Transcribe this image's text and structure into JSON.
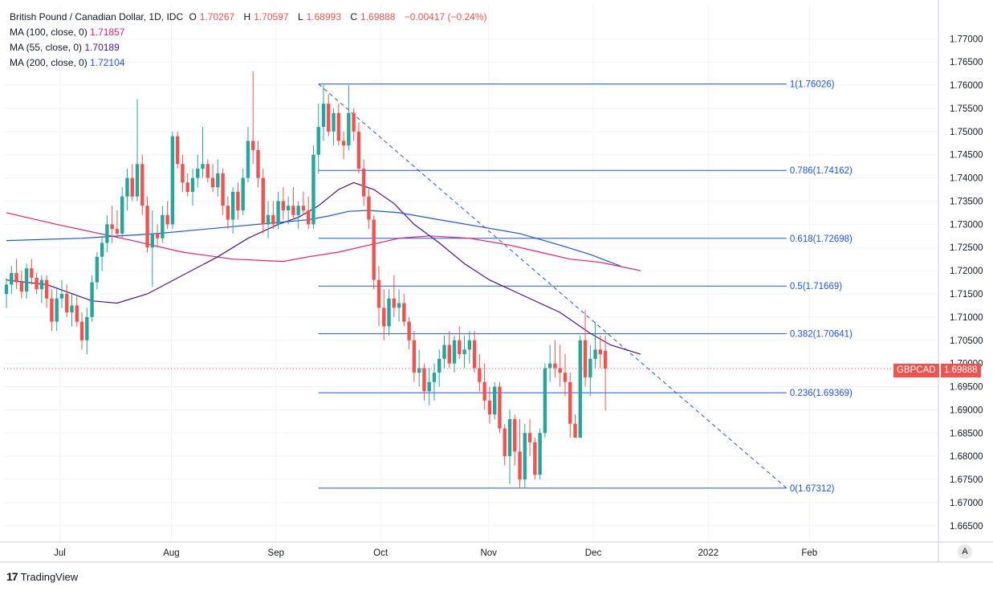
{
  "header": {
    "symbol_title": "British Pound / Canadian Dollar, 1D, IDC",
    "ohlc": {
      "open_label": "O",
      "open": "1.70267",
      "high_label": "H",
      "high": "1.70597",
      "low_label": "L",
      "low": "1.68993",
      "close_label": "C",
      "close": "1.69888",
      "change": "−0.00417 (−0.24%)"
    },
    "indicators": [
      {
        "label": "MA (100, close, 0)",
        "value": "1.71857",
        "color": "#e91e63"
      },
      {
        "label": "MA (55, close, 0)",
        "value": "1.70189",
        "color": "#4a148c"
      },
      {
        "label": "MA (200, close, 0)",
        "value": "1.72104",
        "color": "#1e53e5"
      }
    ]
  },
  "price_tag": {
    "symbol": "GBPCAD",
    "value": "1.69888",
    "color": "#ef5350"
  },
  "branding": {
    "logo": "TradingView"
  },
  "axis_corner": "A",
  "chart_data": {
    "type": "candlestick",
    "y_axis": {
      "ylim": [
        1.6615,
        1.7775
      ],
      "ticks": [
        "1.77000",
        "1.76500",
        "1.76000",
        "1.75500",
        "1.75000",
        "1.74500",
        "1.74000",
        "1.73500",
        "1.73000",
        "1.72500",
        "1.72000",
        "1.71500",
        "1.71000",
        "1.70500",
        "1.70000",
        "1.69500",
        "1.69000",
        "1.68500",
        "1.68000",
        "1.67500",
        "1.67000",
        "1.66500"
      ]
    },
    "x_axis": {
      "xlim": [
        "2021-06-15",
        "2022-03-10"
      ],
      "ticks": [
        {
          "label": "Jul",
          "date": "2021-07-01"
        },
        {
          "label": "Aug",
          "date": "2021-08-02"
        },
        {
          "label": "Sep",
          "date": "2021-09-01"
        },
        {
          "label": "Oct",
          "date": "2021-10-01"
        },
        {
          "label": "Nov",
          "date": "2021-11-01"
        },
        {
          "label": "Dec",
          "date": "2021-12-01"
        },
        {
          "label": "2022",
          "date": "2022-01-03"
        },
        {
          "label": "Feb",
          "date": "2022-02-01"
        }
      ]
    },
    "colors": {
      "up": "#26a69a",
      "down": "#ef5350",
      "fib": "#1e53e5",
      "grid": "#f0f3fa"
    },
    "candles_ohlc": [
      [
        1.715,
        1.7185,
        1.712,
        1.717
      ],
      [
        1.717,
        1.721,
        1.715,
        1.7195
      ],
      [
        1.7195,
        1.7225,
        1.716,
        1.7175
      ],
      [
        1.7175,
        1.72,
        1.714,
        1.7155
      ],
      [
        1.7155,
        1.7215,
        1.714,
        1.7205
      ],
      [
        1.7205,
        1.7225,
        1.717,
        1.7185
      ],
      [
        1.7185,
        1.7195,
        1.715,
        1.716
      ],
      [
        1.716,
        1.719,
        1.713,
        1.718
      ],
      [
        1.718,
        1.719,
        1.712,
        1.714
      ],
      [
        1.714,
        1.716,
        1.707,
        1.709
      ],
      [
        1.709,
        1.716,
        1.707,
        1.714
      ],
      [
        1.714,
        1.718,
        1.712,
        1.715
      ],
      [
        1.715,
        1.717,
        1.71,
        1.711
      ],
      [
        1.711,
        1.715,
        1.708,
        1.7125
      ],
      [
        1.7125,
        1.7145,
        1.708,
        1.709
      ],
      [
        1.709,
        1.711,
        1.703,
        1.705
      ],
      [
        1.705,
        1.712,
        1.702,
        1.71
      ],
      [
        1.71,
        1.719,
        1.709,
        1.7175
      ],
      [
        1.7175,
        1.724,
        1.716,
        1.723
      ],
      [
        1.723,
        1.7275,
        1.72,
        1.726
      ],
      [
        1.726,
        1.732,
        1.724,
        1.73
      ],
      [
        1.73,
        1.734,
        1.726,
        1.729
      ],
      [
        1.729,
        1.733,
        1.727,
        1.728
      ],
      [
        1.728,
        1.738,
        1.727,
        1.736
      ],
      [
        1.736,
        1.742,
        1.733,
        1.74
      ],
      [
        1.74,
        1.743,
        1.735,
        1.736
      ],
      [
        1.736,
        1.757,
        1.735,
        1.743
      ],
      [
        1.743,
        1.745,
        1.732,
        1.734
      ],
      [
        1.734,
        1.736,
        1.724,
        1.725
      ],
      [
        1.725,
        1.733,
        1.7165,
        1.728
      ],
      [
        1.728,
        1.73,
        1.725,
        1.727
      ],
      [
        1.727,
        1.734,
        1.726,
        1.732
      ],
      [
        1.732,
        1.735,
        1.729,
        1.73
      ],
      [
        1.73,
        1.75,
        1.729,
        1.749
      ],
      [
        1.749,
        1.75,
        1.742,
        1.743
      ],
      [
        1.743,
        1.745,
        1.737,
        1.739
      ],
      [
        1.739,
        1.741,
        1.736,
        1.737
      ],
      [
        1.737,
        1.742,
        1.734,
        1.74
      ],
      [
        1.74,
        1.745,
        1.738,
        1.742
      ],
      [
        1.742,
        1.751,
        1.74,
        1.743
      ],
      [
        1.743,
        1.744,
        1.739,
        1.74
      ],
      [
        1.74,
        1.743,
        1.737,
        1.738
      ],
      [
        1.738,
        1.744,
        1.736,
        1.741
      ],
      [
        1.741,
        1.742,
        1.732,
        1.734
      ],
      [
        1.734,
        1.736,
        1.729,
        1.731
      ],
      [
        1.731,
        1.738,
        1.728,
        1.737
      ],
      [
        1.737,
        1.739,
        1.731,
        1.733
      ],
      [
        1.733,
        1.742,
        1.732,
        1.74
      ],
      [
        1.74,
        1.751,
        1.739,
        1.748
      ],
      [
        1.748,
        1.763,
        1.743,
        1.746
      ],
      [
        1.746,
        1.748,
        1.738,
        1.74
      ],
      [
        1.74,
        1.742,
        1.728,
        1.73
      ],
      [
        1.73,
        1.735,
        1.727,
        1.732
      ],
      [
        1.732,
        1.735,
        1.729,
        1.73
      ],
      [
        1.73,
        1.737,
        1.729,
        1.735
      ],
      [
        1.735,
        1.738,
        1.731,
        1.733
      ],
      [
        1.733,
        1.736,
        1.73,
        1.734
      ],
      [
        1.734,
        1.738,
        1.731,
        1.732
      ],
      [
        1.732,
        1.735,
        1.729,
        1.734
      ],
      [
        1.734,
        1.737,
        1.732,
        1.733
      ],
      [
        1.733,
        1.736,
        1.729,
        1.73
      ],
      [
        1.73,
        1.747,
        1.729,
        1.745
      ],
      [
        1.745,
        1.756,
        1.741,
        1.751
      ],
      [
        1.751,
        1.76,
        1.748,
        1.756
      ],
      [
        1.756,
        1.758,
        1.749,
        1.75
      ],
      [
        1.75,
        1.755,
        1.747,
        1.754
      ],
      [
        1.754,
        1.756,
        1.747,
        1.748
      ],
      [
        1.748,
        1.75,
        1.744,
        1.747
      ],
      [
        1.747,
        1.76,
        1.746,
        1.754
      ],
      [
        1.754,
        1.755,
        1.748,
        1.75
      ],
      [
        1.75,
        1.752,
        1.741,
        1.742
      ],
      [
        1.742,
        1.744,
        1.734,
        1.736
      ],
      [
        1.736,
        1.738,
        1.729,
        1.731
      ],
      [
        1.731,
        1.732,
        1.716,
        1.718
      ],
      [
        1.718,
        1.721,
        1.708,
        1.712
      ],
      [
        1.712,
        1.716,
        1.705,
        1.708
      ],
      [
        1.708,
        1.716,
        1.706,
        1.714
      ],
      [
        1.714,
        1.719,
        1.71,
        1.712
      ],
      [
        1.712,
        1.716,
        1.709,
        1.713
      ],
      [
        1.713,
        1.715,
        1.708,
        1.709
      ],
      [
        1.709,
        1.71,
        1.703,
        1.705
      ],
      [
        1.705,
        1.707,
        1.696,
        1.698
      ],
      [
        1.698,
        1.703,
        1.695,
        1.699
      ],
      [
        1.699,
        1.7,
        1.692,
        1.694
      ],
      [
        1.694,
        1.699,
        1.691,
        1.696
      ],
      [
        1.696,
        1.7,
        1.692,
        1.698
      ],
      [
        1.698,
        1.703,
        1.695,
        1.701
      ],
      [
        1.701,
        1.706,
        1.699,
        1.704
      ],
      [
        1.704,
        1.707,
        1.699,
        1.7
      ],
      [
        1.7,
        1.706,
        1.698,
        1.705
      ],
      [
        1.705,
        1.708,
        1.701,
        1.702
      ],
      [
        1.702,
        1.706,
        1.699,
        1.703
      ],
      [
        1.703,
        1.707,
        1.7,
        1.705
      ],
      [
        1.705,
        1.707,
        1.698,
        1.699
      ],
      [
        1.699,
        1.702,
        1.694,
        1.696
      ],
      [
        1.696,
        1.7,
        1.69,
        1.692
      ],
      [
        1.692,
        1.695,
        1.687,
        1.689
      ],
      [
        1.689,
        1.696,
        1.688,
        1.695
      ],
      [
        1.695,
        1.696,
        1.685,
        1.686
      ],
      [
        1.686,
        1.687,
        1.678,
        1.68
      ],
      [
        1.68,
        1.69,
        1.674,
        1.688
      ],
      [
        1.688,
        1.689,
        1.678,
        1.681
      ],
      [
        1.681,
        1.688,
        1.673,
        1.675
      ],
      [
        1.675,
        1.687,
        1.673,
        1.685
      ],
      [
        1.685,
        1.688,
        1.68,
        1.683
      ],
      [
        1.683,
        1.684,
        1.675,
        1.676
      ],
      [
        1.676,
        1.686,
        1.675,
        1.685
      ],
      [
        1.685,
        1.7,
        1.684,
        1.699
      ],
      [
        1.699,
        1.704,
        1.696,
        1.7
      ],
      [
        1.7,
        1.705,
        1.697,
        1.699
      ],
      [
        1.699,
        1.704,
        1.695,
        1.698
      ],
      [
        1.698,
        1.702,
        1.693,
        1.696
      ],
      [
        1.696,
        1.698,
        1.684,
        1.687
      ],
      [
        1.687,
        1.689,
        1.684,
        1.684
      ],
      [
        1.684,
        1.706,
        1.684,
        1.705
      ],
      [
        1.705,
        1.7115,
        1.695,
        1.697
      ],
      [
        1.697,
        1.704,
        1.693,
        1.701
      ],
      [
        1.701,
        1.709,
        1.699,
        1.703
      ],
      [
        1.703,
        1.706,
        1.699,
        1.702
      ],
      [
        1.7027,
        1.706,
        1.6899,
        1.6989
      ]
    ],
    "moving_averages": [
      {
        "name": "MA (100, close, 0)",
        "color": "#e91e63",
        "points": [
          [
            1.7325,
            0
          ],
          [
            1.73,
            10
          ],
          [
            1.7265,
            25
          ],
          [
            1.724,
            35
          ],
          [
            1.7225,
            45
          ],
          [
            1.722,
            55
          ],
          [
            1.723,
            60
          ],
          [
            1.724,
            66
          ],
          [
            1.7255,
            72
          ],
          [
            1.727,
            78
          ],
          [
            1.7275,
            84
          ],
          [
            1.727,
            92
          ],
          [
            1.7255,
            100
          ],
          [
            1.724,
            106
          ],
          [
            1.7225,
            112
          ],
          [
            1.7218,
            118
          ],
          [
            1.72,
            126
          ]
        ]
      },
      {
        "name": "MA (55, close, 0)",
        "color": "#4a148c",
        "points": [
          [
            1.718,
            0
          ],
          [
            1.717,
            8
          ],
          [
            1.7135,
            17
          ],
          [
            1.713,
            22
          ],
          [
            1.715,
            28
          ],
          [
            1.719,
            35
          ],
          [
            1.723,
            42
          ],
          [
            1.727,
            48
          ],
          [
            1.73,
            54
          ],
          [
            1.7315,
            58
          ],
          [
            1.734,
            62
          ],
          [
            1.7375,
            66
          ],
          [
            1.739,
            69
          ],
          [
            1.7375,
            73
          ],
          [
            1.7345,
            77
          ],
          [
            1.73,
            81
          ],
          [
            1.726,
            86
          ],
          [
            1.7215,
            91
          ],
          [
            1.718,
            96
          ],
          [
            1.715,
            102
          ],
          [
            1.711,
            110
          ],
          [
            1.7065,
            116
          ],
          [
            1.704,
            120
          ],
          [
            1.702,
            126
          ]
        ]
      },
      {
        "name": "MA (200, close, 0)",
        "color": "#1e53e5",
        "points": [
          [
            1.7265,
            0
          ],
          [
            1.727,
            15
          ],
          [
            1.728,
            30
          ],
          [
            1.7295,
            45
          ],
          [
            1.7305,
            55
          ],
          [
            1.731,
            60
          ],
          [
            1.7318,
            64
          ],
          [
            1.7328,
            68
          ],
          [
            1.733,
            72
          ],
          [
            1.7325,
            78
          ],
          [
            1.731,
            86
          ],
          [
            1.7295,
            94
          ],
          [
            1.728,
            102
          ],
          [
            1.7255,
            110
          ],
          [
            1.7235,
            116
          ],
          [
            1.721,
            122
          ]
        ]
      }
    ],
    "fibonacci": {
      "levels": [
        {
          "label": "1(1.76026)",
          "price": 1.76026
        },
        {
          "label": "0.786(1.74162)",
          "price": 1.74162
        },
        {
          "label": "0.618(1.72698)",
          "price": 1.72698
        },
        {
          "label": "0.5(1.71669)",
          "price": 1.71669
        },
        {
          "label": "0.382(1.70641)",
          "price": 1.70641
        },
        {
          "label": "0.236(1.69369)",
          "price": 1.69369
        },
        {
          "label": "0(1.67312)",
          "price": 1.67312
        }
      ],
      "start_bar": 62,
      "end_bar": 155
    },
    "trend_line": {
      "from": [
        62,
        1.76026
      ],
      "to": [
        155,
        1.67312
      ]
    }
  }
}
